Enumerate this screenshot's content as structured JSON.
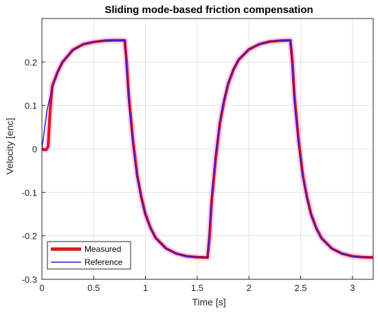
{
  "chart_data": {
    "type": "line",
    "title": "Sliding mode-based friction compensation",
    "xlabel": "Time [s]",
    "ylabel": "Velocity [enc]",
    "xlim": [
      0,
      3.2
    ],
    "ylim": [
      -0.3,
      0.3
    ],
    "xticks": [
      0,
      0.5,
      1,
      1.5,
      2,
      2.5,
      3
    ],
    "xtick_labels": [
      "0",
      "0.5",
      "1",
      "1.5",
      "2",
      "2.5",
      "3"
    ],
    "yticks": [
      -0.3,
      -0.2,
      -0.1,
      0,
      0.1,
      0.2
    ],
    "ytick_labels": [
      "-0.3",
      "-0.2",
      "-0.1",
      "0",
      "0.1",
      "0.2"
    ],
    "grid": true,
    "legend_position": "bottom-left",
    "colors": {
      "measured": "#d7191c",
      "reference": "#1f1fd6",
      "noise": "#ff4df0"
    },
    "series": [
      {
        "name": "Measured",
        "x": [
          0,
          0.02,
          0.04,
          0.06,
          0.08,
          0.1,
          0.15,
          0.2,
          0.3,
          0.4,
          0.5,
          0.6,
          0.7,
          0.8,
          0.82,
          0.84,
          0.88,
          0.92,
          0.96,
          1.0,
          1.05,
          1.1,
          1.2,
          1.3,
          1.4,
          1.5,
          1.6,
          1.62,
          1.64,
          1.68,
          1.72,
          1.76,
          1.8,
          1.85,
          1.9,
          2.0,
          2.1,
          2.2,
          2.3,
          2.4,
          2.42,
          2.44,
          2.48,
          2.52,
          2.56,
          2.6,
          2.65,
          2.7,
          2.8,
          2.9,
          3.0,
          3.1,
          3.2
        ],
        "values": [
          0,
          -0.002,
          -0.002,
          0.005,
          0.09,
          0.145,
          0.176,
          0.2,
          0.228,
          0.241,
          0.246,
          0.249,
          0.25,
          0.25,
          0.195,
          0.12,
          0.02,
          -0.06,
          -0.11,
          -0.15,
          -0.182,
          -0.205,
          -0.229,
          -0.241,
          -0.247,
          -0.249,
          -0.25,
          -0.2,
          -0.12,
          -0.02,
          0.06,
          0.11,
          0.15,
          0.182,
          0.205,
          0.229,
          0.241,
          0.247,
          0.249,
          0.25,
          0.2,
          0.12,
          0.02,
          -0.06,
          -0.11,
          -0.15,
          -0.182,
          -0.205,
          -0.229,
          -0.241,
          -0.247,
          -0.249,
          -0.25
        ]
      },
      {
        "name": "Reference",
        "x": [
          0,
          0.05,
          0.1,
          0.15,
          0.2,
          0.3,
          0.4,
          0.5,
          0.6,
          0.7,
          0.8,
          0.84,
          0.88,
          0.92,
          0.96,
          1.0,
          1.05,
          1.1,
          1.2,
          1.3,
          1.4,
          1.5,
          1.6,
          1.64,
          1.68,
          1.72,
          1.76,
          1.8,
          1.85,
          1.9,
          2.0,
          2.1,
          2.2,
          2.3,
          2.4,
          2.44,
          2.48,
          2.52,
          2.56,
          2.6,
          2.65,
          2.7,
          2.8,
          2.9,
          3.0,
          3.1,
          3.2
        ],
        "values": [
          0,
          0.09,
          0.14,
          0.176,
          0.2,
          0.228,
          0.241,
          0.246,
          0.249,
          0.25,
          0.25,
          0.11,
          0.01,
          -0.065,
          -0.115,
          -0.152,
          -0.184,
          -0.206,
          -0.23,
          -0.241,
          -0.247,
          -0.249,
          -0.25,
          -0.11,
          -0.01,
          0.065,
          0.115,
          0.152,
          0.184,
          0.206,
          0.23,
          0.241,
          0.247,
          0.249,
          0.25,
          0.11,
          0.01,
          -0.065,
          -0.115,
          -0.152,
          -0.184,
          -0.206,
          -0.23,
          -0.241,
          -0.247,
          -0.249,
          -0.25
        ]
      }
    ]
  }
}
